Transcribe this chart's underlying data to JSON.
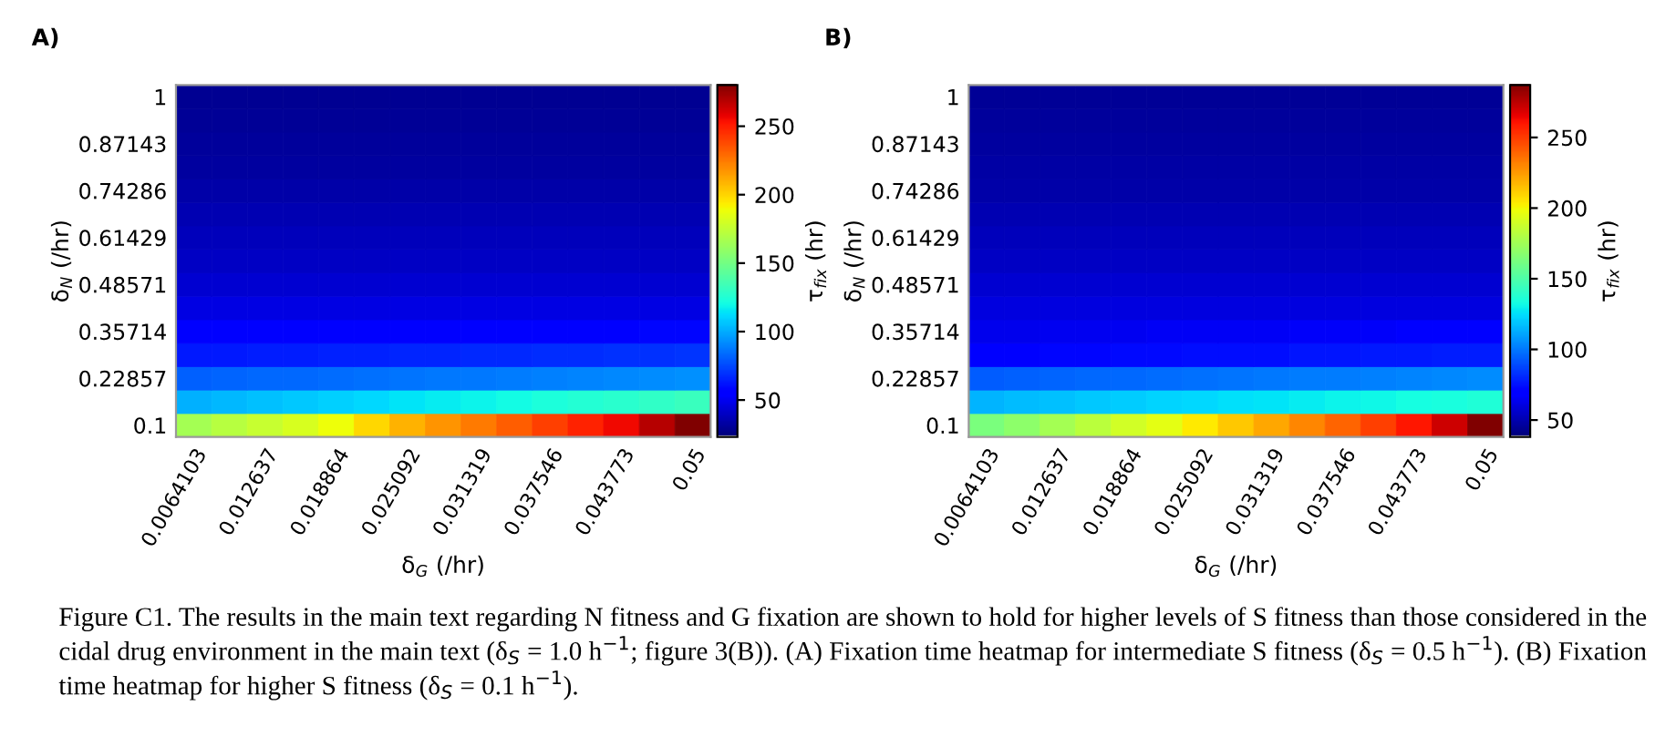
{
  "chart_data": [
    {
      "type": "heatmap",
      "title": "A)",
      "xlabel": "δ$_{G}$ (/hr)",
      "ylabel": "δ$_{N}$ (/hr)",
      "clabel": "τ$_{fix}$ (hr)",
      "categories": [
        "0.0064103",
        null,
        "0.012637",
        null,
        "0.018864",
        null,
        "0.025092",
        null,
        "0.031319",
        null,
        "0.037546",
        null,
        "0.043773",
        null,
        "0.05"
      ],
      "y_categories": [
        "1",
        null,
        "0.87143",
        null,
        "0.74286",
        null,
        "0.61429",
        null,
        "0.48571",
        null,
        "0.35714",
        null,
        "0.22857",
        null,
        "0.1"
      ],
      "cells": [
        [
          28,
          28,
          28,
          28,
          28,
          28,
          28,
          28,
          28,
          28,
          28,
          28,
          28,
          28,
          28
        ],
        [
          29,
          29,
          29,
          29,
          29,
          29,
          29,
          29,
          29,
          29,
          29,
          29,
          29,
          29,
          29
        ],
        [
          30,
          30,
          30,
          30,
          30,
          30,
          30,
          30,
          30,
          30,
          30,
          30,
          30,
          30,
          30
        ],
        [
          31,
          31,
          31,
          31,
          31,
          31,
          31,
          31,
          31,
          31,
          31,
          31,
          31,
          31,
          31
        ],
        [
          33,
          33,
          33,
          33,
          33,
          33,
          33,
          33,
          33,
          33,
          33,
          33,
          33,
          33,
          33
        ],
        [
          35,
          35,
          35,
          35,
          35,
          35,
          35,
          35,
          35,
          35,
          35,
          35,
          35,
          35,
          35
        ],
        [
          37,
          37,
          37,
          37,
          37,
          37,
          37,
          37,
          37,
          37,
          37,
          37,
          37,
          37,
          37
        ],
        [
          39,
          39,
          39,
          39,
          39,
          39,
          39,
          39,
          39,
          39,
          39,
          39,
          39,
          39,
          39
        ],
        [
          42,
          42,
          42,
          42,
          42,
          42,
          42,
          42,
          42,
          42,
          42,
          42,
          42,
          42,
          42
        ],
        [
          46,
          46,
          46,
          46,
          46,
          46,
          46,
          46,
          46,
          46,
          46,
          46,
          46,
          46,
          46
        ],
        [
          52,
          52,
          53,
          53,
          54,
          54,
          54,
          55,
          55,
          55,
          56,
          56,
          56,
          57,
          57
        ],
        [
          62,
          62,
          63,
          63,
          64,
          64,
          65,
          65,
          66,
          66,
          67,
          67,
          68,
          68,
          69
        ],
        [
          80,
          81,
          82,
          82,
          83,
          84,
          85,
          86,
          86,
          87,
          88,
          89,
          90,
          91,
          92
        ],
        [
          100,
          102,
          104,
          106,
          108,
          110,
          113,
          115,
          117,
          119,
          122,
          124,
          126,
          128,
          131
        ],
        [
          164,
          170,
          175,
          180,
          187,
          198,
          208,
          216,
          223,
          231,
          239,
          247,
          254,
          267,
          280
        ]
      ],
      "clim": [
        23,
        280
      ],
      "cticks": [
        50,
        100,
        150,
        200,
        250
      ],
      "annotations": [
        "Figure C1. The results in the main text regarding N fitness and G fixation are shown to hold for higher levels of S fitness than those considered in the cidal drug environment in the main text (δ$_{S}$ = 1.0 h$^{−1}$; figure 3(B)). (A) Fixation time heatmap for intermediate S fitness (δ$_{S}$ = 0.5 h$^{−1}$). (B) Fixation time heatmap for higher S fitness (δ$_{S}$ = 0.1 h$^{−1}$)."
      ]
    },
    {
      "type": "heatmap",
      "title": "B)",
      "xlabel": "δ$_{G}$ (/hr)",
      "ylabel": "δ$_{N}$ (/hr)",
      "clabel": "τ$_{fix}$ (hr)",
      "categories": [
        "0.0064103",
        null,
        "0.012637",
        null,
        "0.018864",
        null,
        "0.025092",
        null,
        "0.031319",
        null,
        "0.037546",
        null,
        "0.043773",
        null,
        "0.05"
      ],
      "y_categories": [
        "1",
        null,
        "0.87143",
        null,
        "0.74286",
        null,
        "0.61429",
        null,
        "0.48571",
        null,
        "0.35714",
        null,
        "0.22857",
        null,
        "0.1"
      ],
      "cells": [
        [
          43,
          43,
          43,
          43,
          43,
          43,
          43,
          43,
          43,
          43,
          43,
          43,
          43,
          43,
          43
        ],
        [
          44,
          44,
          44,
          44,
          44,
          44,
          44,
          44,
          44,
          44,
          44,
          44,
          44,
          44,
          44
        ],
        [
          45,
          45,
          45,
          45,
          45,
          45,
          45,
          45,
          45,
          45,
          45,
          45,
          45,
          45,
          45
        ],
        [
          46,
          46,
          46,
          46,
          46,
          46,
          46,
          46,
          46,
          46,
          46,
          46,
          46,
          46,
          46
        ],
        [
          47,
          47,
          47,
          47,
          47,
          47,
          47,
          47,
          47,
          47,
          47,
          47,
          47,
          47,
          47
        ],
        [
          49,
          49,
          49,
          49,
          49,
          49,
          49,
          49,
          49,
          49,
          49,
          49,
          49,
          49,
          49
        ],
        [
          51,
          51,
          51,
          51,
          51,
          51,
          51,
          51,
          51,
          51,
          51,
          51,
          51,
          51,
          51
        ],
        [
          53,
          53,
          53,
          53,
          53,
          53,
          53,
          53,
          53,
          53,
          53,
          53,
          53,
          53,
          53
        ],
        [
          56,
          56,
          56,
          56,
          56,
          56,
          56,
          56,
          56,
          56,
          56,
          56,
          56,
          56,
          56
        ],
        [
          59,
          59,
          59,
          59,
          59,
          59,
          59,
          59,
          59,
          59,
          59,
          59,
          59,
          59,
          59
        ],
        [
          62,
          62,
          63,
          63,
          63,
          64,
          64,
          64,
          64,
          65,
          65,
          65,
          66,
          66,
          66
        ],
        [
          70,
          70,
          71,
          71,
          72,
          72,
          73,
          73,
          73,
          74,
          74,
          75,
          75,
          76,
          76
        ],
        [
          92,
          93,
          94,
          95,
          95,
          96,
          97,
          98,
          99,
          100,
          100,
          101,
          102,
          103,
          104
        ],
        [
          113,
          115,
          116,
          118,
          119,
          121,
          122,
          124,
          125,
          127,
          129,
          130,
          132,
          133,
          135
        ],
        [
          162,
          168,
          175,
          181,
          188,
          194,
          203,
          212,
          220,
          229,
          238,
          248,
          258,
          270,
          287
        ]
      ],
      "clim": [
        38,
        287
      ],
      "cticks": [
        50,
        100,
        150,
        200,
        250
      ]
    }
  ]
}
